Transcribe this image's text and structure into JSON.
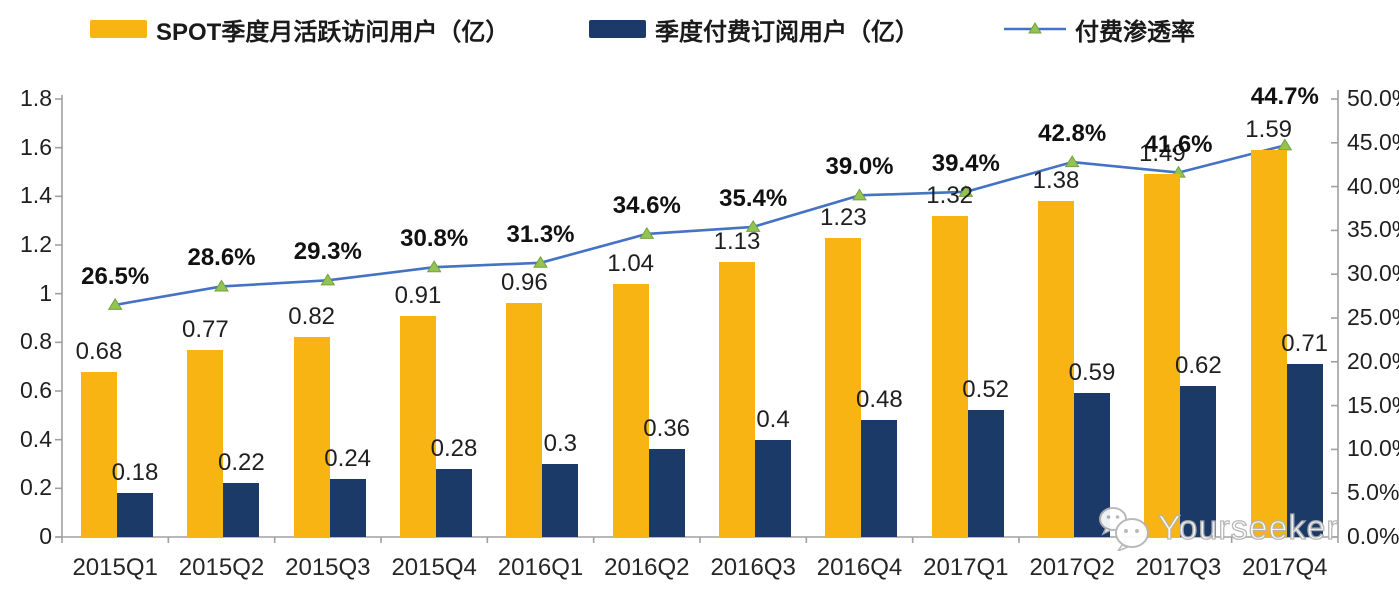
{
  "legend": [
    {
      "label": "SPOT季度月活跃访问用户（亿）",
      "type": "bar",
      "color": "#F7B413"
    },
    {
      "label": "季度付费订阅用户（亿）",
      "type": "bar",
      "color": "#1B3A68"
    },
    {
      "label": "付费渗透率",
      "type": "line",
      "color": "#4472C4",
      "marker_color": "#92C353"
    }
  ],
  "chart_data": {
    "type": "bar+line combo",
    "categories": [
      "2015Q1",
      "2015Q2",
      "2015Q3",
      "2015Q4",
      "2016Q1",
      "2016Q2",
      "2016Q3",
      "2016Q4",
      "2017Q1",
      "2017Q2",
      "2017Q3",
      "2017Q4"
    ],
    "series": [
      {
        "name": "SPOT季度月活跃访问用户（亿）",
        "type": "bar",
        "axis": "left",
        "color": "#F7B413",
        "values": [
          0.68,
          0.77,
          0.82,
          0.91,
          0.96,
          1.04,
          1.13,
          1.23,
          1.32,
          1.38,
          1.49,
          1.59
        ],
        "labels": [
          "0.68",
          "0.77",
          "0.82",
          "0.91",
          "0.96",
          "1.04",
          "1.13",
          "1.23",
          "1.32",
          "1.38",
          "1.49",
          "1.59"
        ]
      },
      {
        "name": "季度付费订阅用户（亿）",
        "type": "bar",
        "axis": "left",
        "color": "#1B3A68",
        "values": [
          0.18,
          0.22,
          0.24,
          0.28,
          0.3,
          0.36,
          0.4,
          0.48,
          0.52,
          0.59,
          0.62,
          0.71
        ],
        "labels": [
          "0.18",
          "0.22",
          "0.24",
          "0.28",
          "0.3",
          "0.36",
          "0.4",
          "0.48",
          "0.52",
          "0.59",
          "0.62",
          "0.71"
        ]
      },
      {
        "name": "付费渗透率",
        "type": "line",
        "axis": "right",
        "color": "#4472C4",
        "marker": "triangle",
        "marker_color": "#92C353",
        "marker_edge": "#74A23E",
        "values": [
          26.5,
          28.6,
          29.3,
          30.8,
          31.3,
          34.6,
          35.4,
          39.0,
          39.4,
          42.8,
          41.6,
          44.7
        ],
        "labels": [
          "26.5%",
          "28.6%",
          "29.3%",
          "30.8%",
          "31.3%",
          "34.6%",
          "35.4%",
          "39.0%",
          "39.4%",
          "42.8%",
          "41.6%",
          "44.7%"
        ]
      }
    ],
    "left_axis": {
      "range": [
        0,
        1.8
      ],
      "ticks": [
        "1.8",
        "1.6",
        "1.4",
        "1.2",
        "1",
        "0.8",
        "0.6",
        "0.4",
        "0.2",
        "0"
      ]
    },
    "right_axis": {
      "range": [
        0,
        50
      ],
      "ticks": [
        "50.0%",
        "45.0%",
        "40.0%",
        "35.0%",
        "30.0%",
        "25.0%",
        "20.0%",
        "15.0%",
        "10.0%",
        "5.0%",
        "0.0%"
      ]
    },
    "grid": false,
    "legend_position": "top",
    "axis_color": "#A0A0A0"
  },
  "watermark": {
    "text": "Yourseeker",
    "icon": "wechat-icon"
  }
}
